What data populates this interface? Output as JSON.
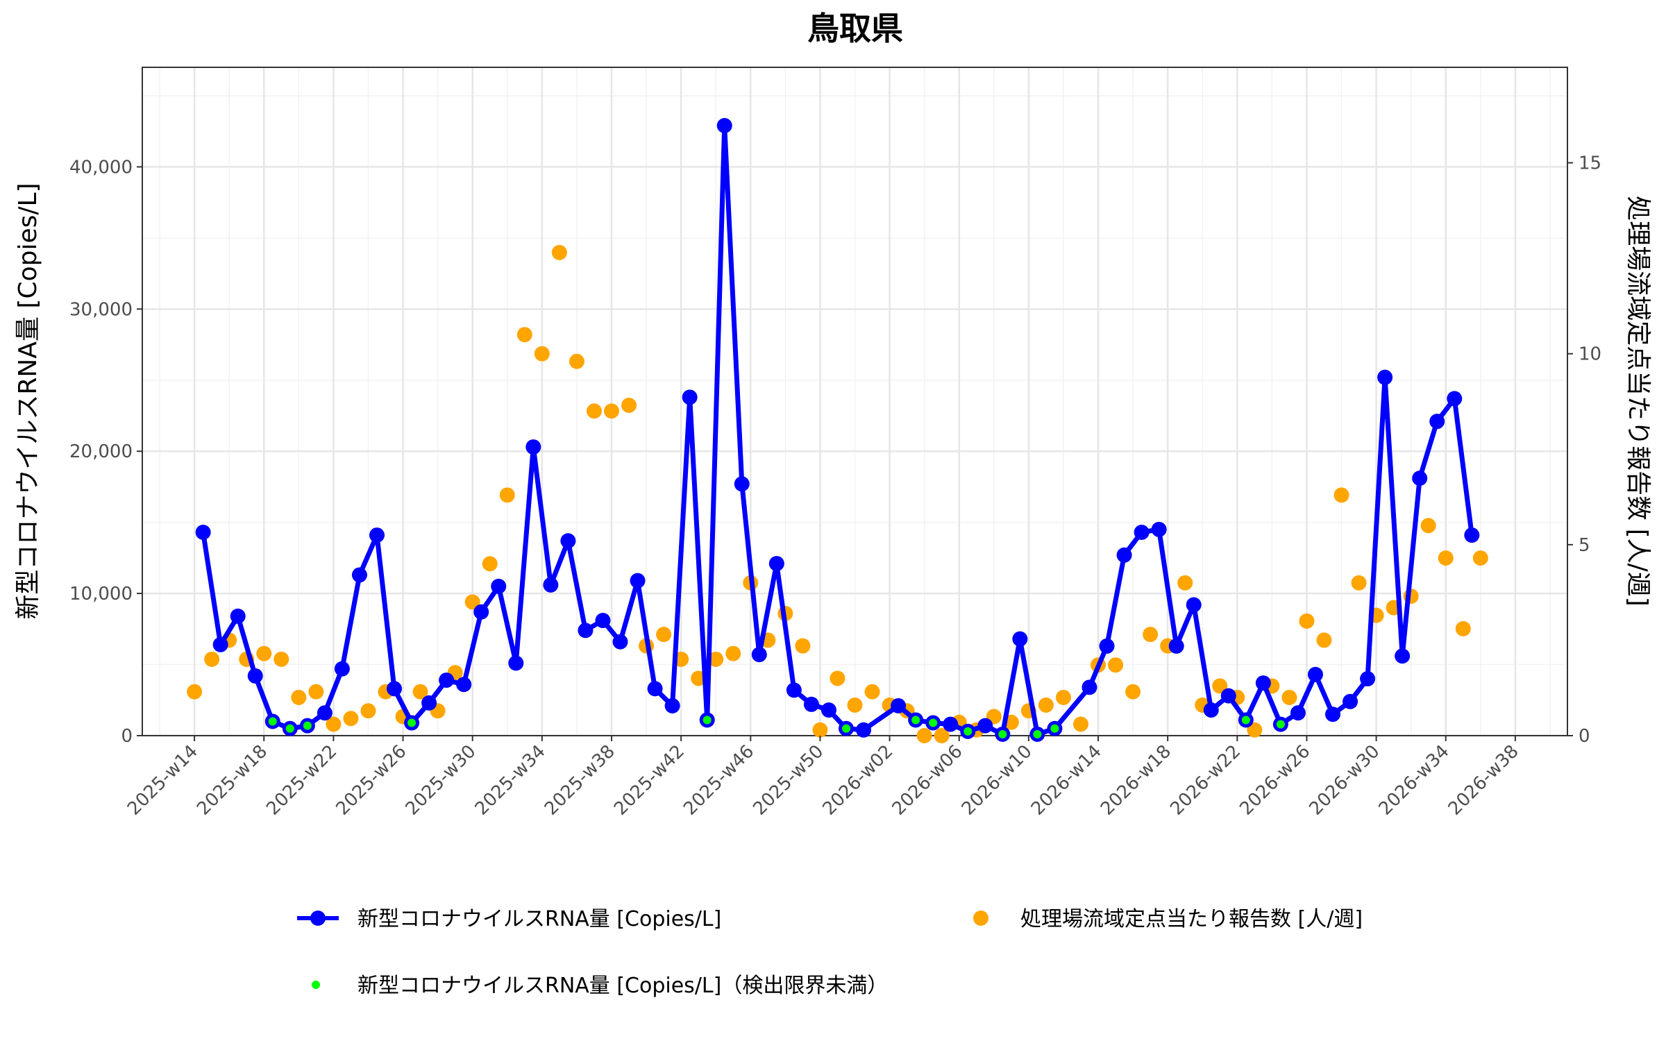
{
  "chart_data": {
    "type": "line",
    "title": "鳥取県",
    "ylabel_left": "新型コロナウイルスRNA量 [Copies/L]",
    "ylabel_right": "処理場流域定点当たり報告数 [人/週]",
    "ylim_left": [
      0,
      47000
    ],
    "ylim_right": [
      0,
      17.5
    ],
    "yticks_left": [
      0,
      10000,
      20000,
      30000,
      40000
    ],
    "yticks_left_labels": [
      "0",
      "10,000",
      "20,000",
      "30,000",
      "40,000"
    ],
    "yticks_right": [
      0,
      5,
      10,
      15
    ],
    "yticks_right_labels": [
      "0",
      "5",
      "10",
      "15"
    ],
    "x_range": [
      -3,
      79
    ],
    "x_ticks": [
      0,
      4,
      8,
      12,
      16,
      20,
      24,
      28,
      32,
      36,
      40,
      44,
      48,
      52,
      56,
      60,
      64,
      68,
      72,
      76,
      80
    ],
    "x_tick_labels": [
      "2025-w14",
      "2025-w18",
      "2025-w22",
      "2025-w26",
      "2025-w30",
      "2025-w34",
      "2025-w38",
      "2025-w42",
      "2025-w46",
      "2025-w50",
      "2026-w02",
      "2026-w06",
      "2026-w10",
      "2026-w14",
      "2026-w18",
      "2026-w22",
      "2026-w26",
      "2026-w30",
      "2026-w34",
      "2026-w38"
    ],
    "grid": true,
    "colors": {
      "rna": "#0000ff",
      "reports": "#ffa500",
      "below_limit": "#00ff00"
    },
    "rna_series": [
      {
        "x": 0.5,
        "y": 14300,
        "below": false
      },
      {
        "x": 1.5,
        "y": 6400,
        "below": false
      },
      {
        "x": 2.5,
        "y": 8400,
        "below": false
      },
      {
        "x": 3.5,
        "y": 4200,
        "below": false
      },
      {
        "x": 4.5,
        "y": 1000,
        "below": true
      },
      {
        "x": 5.5,
        "y": 500,
        "below": true
      },
      {
        "x": 6.5,
        "y": 700,
        "below": true
      },
      {
        "x": 7.5,
        "y": 1600,
        "below": false
      },
      {
        "x": 8.5,
        "y": 4700,
        "below": false
      },
      {
        "x": 9.5,
        "y": 11300,
        "below": false
      },
      {
        "x": 10.5,
        "y": 14100,
        "below": false
      },
      {
        "x": 11.5,
        "y": 3300,
        "below": false
      },
      {
        "x": 12.5,
        "y": 900,
        "below": true
      },
      {
        "x": 13.5,
        "y": 2300,
        "below": false
      },
      {
        "x": 14.5,
        "y": 3900,
        "below": false
      },
      {
        "x": 15.5,
        "y": 3600,
        "below": false
      },
      {
        "x": 16.5,
        "y": 8700,
        "below": false
      },
      {
        "x": 17.5,
        "y": 10500,
        "below": false
      },
      {
        "x": 18.5,
        "y": 5100,
        "below": false
      },
      {
        "x": 19.5,
        "y": 20300,
        "below": false
      },
      {
        "x": 20.5,
        "y": 10600,
        "below": false
      },
      {
        "x": 21.5,
        "y": 13700,
        "below": false
      },
      {
        "x": 22.5,
        "y": 7400,
        "below": false
      },
      {
        "x": 23.5,
        "y": 8100,
        "below": false
      },
      {
        "x": 24.5,
        "y": 6600,
        "below": false
      },
      {
        "x": 25.5,
        "y": 10900,
        "below": false
      },
      {
        "x": 26.5,
        "y": 3300,
        "below": false
      },
      {
        "x": 27.5,
        "y": 2100,
        "below": false
      },
      {
        "x": 28.5,
        "y": 23800,
        "below": false
      },
      {
        "x": 29.5,
        "y": 1100,
        "below": true
      },
      {
        "x": 30.5,
        "y": 42900,
        "below": false
      },
      {
        "x": 31.5,
        "y": 17700,
        "below": false
      },
      {
        "x": 32.5,
        "y": 5700,
        "below": false
      },
      {
        "x": 33.5,
        "y": 12100,
        "below": false
      },
      {
        "x": 34.5,
        "y": 3200,
        "below": false
      },
      {
        "x": 35.5,
        "y": 2200,
        "below": false
      },
      {
        "x": 36.5,
        "y": 1800,
        "below": false
      },
      {
        "x": 37.5,
        "y": 500,
        "below": true
      },
      {
        "x": 38.5,
        "y": 400,
        "below": false
      },
      {
        "x": 40.5,
        "y": 2100,
        "below": false
      },
      {
        "x": 41.5,
        "y": 1100,
        "below": true
      },
      {
        "x": 42.5,
        "y": 900,
        "below": true
      },
      {
        "x": 43.5,
        "y": 800,
        "below": false
      },
      {
        "x": 44.5,
        "y": 300,
        "below": true
      },
      {
        "x": 45.5,
        "y": 700,
        "below": false
      },
      {
        "x": 46.5,
        "y": 100,
        "below": true
      },
      {
        "x": 47.5,
        "y": 6800,
        "below": false
      },
      {
        "x": 48.5,
        "y": 100,
        "below": true
      },
      {
        "x": 49.5,
        "y": 500,
        "below": true
      },
      {
        "x": 51.5,
        "y": 3400,
        "below": false
      },
      {
        "x": 52.5,
        "y": 6300,
        "below": false
      },
      {
        "x": 53.5,
        "y": 12700,
        "below": false
      },
      {
        "x": 54.5,
        "y": 14300,
        "below": false
      },
      {
        "x": 55.5,
        "y": 14500,
        "below": false
      },
      {
        "x": 56.5,
        "y": 6300,
        "below": false
      },
      {
        "x": 57.5,
        "y": 9200,
        "below": false
      },
      {
        "x": 58.5,
        "y": 1800,
        "below": false
      },
      {
        "x": 59.5,
        "y": 2800,
        "below": false
      },
      {
        "x": 60.5,
        "y": 1100,
        "below": true
      },
      {
        "x": 61.5,
        "y": 3700,
        "below": false
      },
      {
        "x": 62.5,
        "y": 800,
        "below": true
      },
      {
        "x": 63.5,
        "y": 1600,
        "below": false
      },
      {
        "x": 64.5,
        "y": 4300,
        "below": false
      },
      {
        "x": 65.5,
        "y": 1500,
        "below": false
      },
      {
        "x": 66.5,
        "y": 2400,
        "below": false
      },
      {
        "x": 67.5,
        "y": 4000,
        "below": false
      },
      {
        "x": 68.5,
        "y": 25200,
        "below": false
      },
      {
        "x": 69.5,
        "y": 5600,
        "below": false
      },
      {
        "x": 70.5,
        "y": 18100,
        "below": false
      },
      {
        "x": 71.5,
        "y": 22100,
        "below": false
      },
      {
        "x": 72.5,
        "y": 23700,
        "below": false
      },
      {
        "x": 73.5,
        "y": 14100,
        "below": false
      }
    ],
    "report_series": [
      {
        "x": 0,
        "y": 1.15
      },
      {
        "x": 1,
        "y": 2.0
      },
      {
        "x": 2,
        "y": 2.5
      },
      {
        "x": 3,
        "y": 2.0
      },
      {
        "x": 4,
        "y": 2.15
      },
      {
        "x": 5,
        "y": 2.0
      },
      {
        "x": 6,
        "y": 1.0
      },
      {
        "x": 7,
        "y": 1.15
      },
      {
        "x": 8,
        "y": 0.3
      },
      {
        "x": 9,
        "y": 0.45
      },
      {
        "x": 10,
        "y": 0.65
      },
      {
        "x": 11,
        "y": 1.15
      },
      {
        "x": 12,
        "y": 0.5
      },
      {
        "x": 13,
        "y": 1.15
      },
      {
        "x": 14,
        "y": 0.65
      },
      {
        "x": 15,
        "y": 1.65
      },
      {
        "x": 16,
        "y": 3.5
      },
      {
        "x": 17,
        "y": 4.5
      },
      {
        "x": 18,
        "y": 6.3
      },
      {
        "x": 19,
        "y": 10.5
      },
      {
        "x": 20,
        "y": 10.0
      },
      {
        "x": 21,
        "y": 12.65
      },
      {
        "x": 22,
        "y": 9.8
      },
      {
        "x": 23,
        "y": 8.5
      },
      {
        "x": 24,
        "y": 8.5
      },
      {
        "x": 25,
        "y": 8.65
      },
      {
        "x": 26,
        "y": 2.35
      },
      {
        "x": 27,
        "y": 2.65
      },
      {
        "x": 28,
        "y": 2.0
      },
      {
        "x": 29,
        "y": 1.5
      },
      {
        "x": 30,
        "y": 2.0
      },
      {
        "x": 31,
        "y": 2.15
      },
      {
        "x": 32,
        "y": 4.0
      },
      {
        "x": 33,
        "y": 2.5
      },
      {
        "x": 34,
        "y": 3.2
      },
      {
        "x": 35,
        "y": 2.35
      },
      {
        "x": 36,
        "y": 0.15
      },
      {
        "x": 37,
        "y": 1.5
      },
      {
        "x": 38,
        "y": 0.8
      },
      {
        "x": 39,
        "y": 1.15
      },
      {
        "x": 40,
        "y": 0.8
      },
      {
        "x": 41,
        "y": 0.65
      },
      {
        "x": 42,
        "y": 0.0
      },
      {
        "x": 43,
        "y": 0.0
      },
      {
        "x": 44,
        "y": 0.35
      },
      {
        "x": 45,
        "y": 0.15
      },
      {
        "x": 46,
        "y": 0.5
      },
      {
        "x": 47,
        "y": 0.35
      },
      {
        "x": 48,
        "y": 0.65
      },
      {
        "x": 49,
        "y": 0.8
      },
      {
        "x": 50,
        "y": 1.0
      },
      {
        "x": 51,
        "y": 0.3
      },
      {
        "x": 52,
        "y": 1.85
      },
      {
        "x": 53,
        "y": 1.85
      },
      {
        "x": 54,
        "y": 1.15
      },
      {
        "x": 55,
        "y": 2.65
      },
      {
        "x": 56,
        "y": 2.35
      },
      {
        "x": 57,
        "y": 4.0
      },
      {
        "x": 58,
        "y": 0.8
      },
      {
        "x": 59,
        "y": 1.3
      },
      {
        "x": 60,
        "y": 1.0
      },
      {
        "x": 61,
        "y": 0.15
      },
      {
        "x": 62,
        "y": 1.3
      },
      {
        "x": 63,
        "y": 1.0
      },
      {
        "x": 64,
        "y": 3.0
      },
      {
        "x": 65,
        "y": 2.5
      },
      {
        "x": 66,
        "y": 6.3
      },
      {
        "x": 67,
        "y": 4.0
      },
      {
        "x": 68,
        "y": 3.15
      },
      {
        "x": 69,
        "y": 3.35
      },
      {
        "x": 70,
        "y": 3.65
      },
      {
        "x": 71,
        "y": 5.5
      },
      {
        "x": 72,
        "y": 4.65
      },
      {
        "x": 73,
        "y": 2.8
      },
      {
        "x": 74,
        "y": 4.65
      }
    ],
    "legend": {
      "rna_label": "新型コロナウイルスRNA量 [Copies/L]",
      "reports_label": "処理場流域定点当たり報告数 [人/週]",
      "below_label": "新型コロナウイルスRNA量 [Copies/L]（検出限界未満）"
    }
  }
}
